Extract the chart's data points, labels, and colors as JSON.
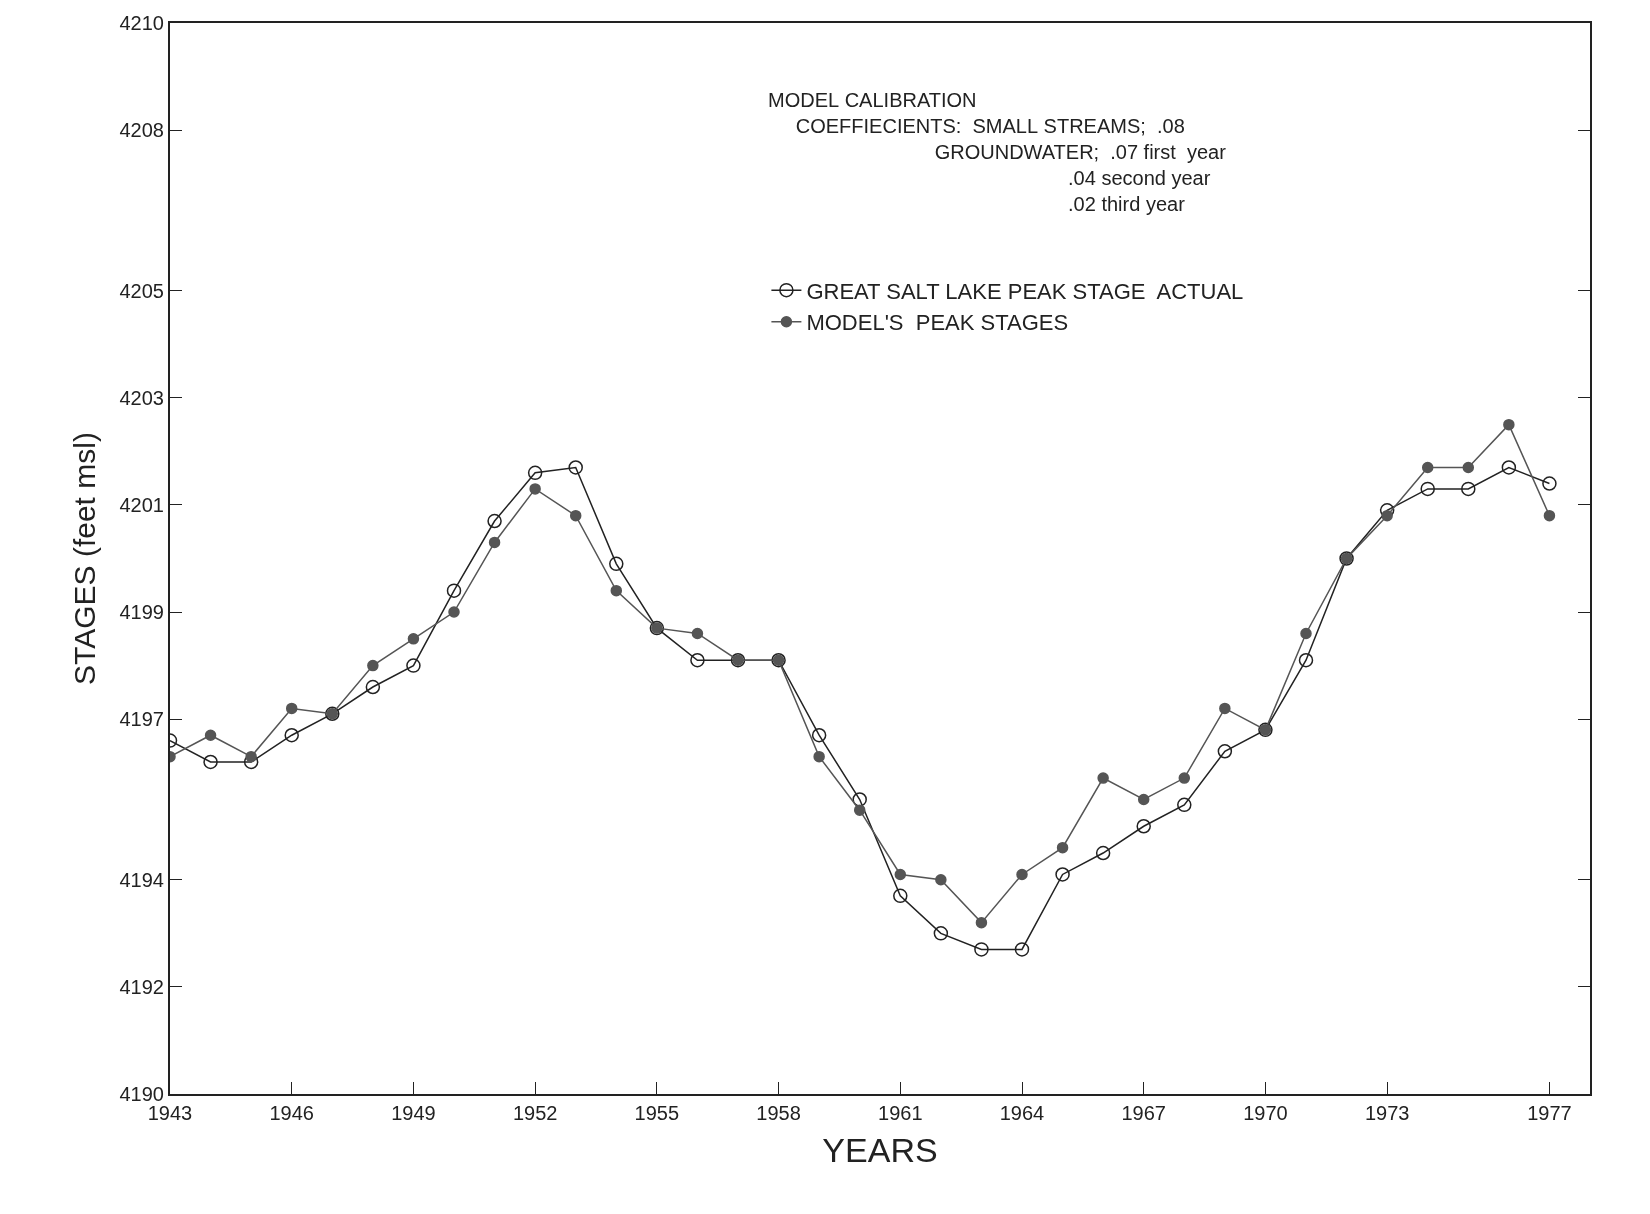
{
  "chart_data": {
    "type": "line",
    "xlabel": "YEARS",
    "ylabel": "STAGES (feet msl)",
    "x": [
      1943,
      1944,
      1945,
      1946,
      1947,
      1948,
      1949,
      1950,
      1951,
      1952,
      1953,
      1954,
      1955,
      1956,
      1957,
      1958,
      1959,
      1960,
      1961,
      1962,
      1963,
      1964,
      1965,
      1966,
      1967,
      1968,
      1969,
      1970,
      1971,
      1972,
      1973,
      1974,
      1975,
      1976,
      1977
    ],
    "series": [
      {
        "name": "GREAT SALT LAKE PEAK STAGE  ACTUAL",
        "color": "#222222",
        "marker": "circle",
        "values": [
          4196.6,
          4196.2,
          4196.2,
          4196.7,
          4197.1,
          4197.6,
          4198.0,
          4199.4,
          4200.7,
          4201.6,
          4201.7,
          4199.9,
          4198.7,
          4198.1,
          4198.1,
          4198.1,
          4196.7,
          4195.5,
          4193.7,
          4193.0,
          4192.7,
          4192.7,
          4194.1,
          4194.5,
          4195.0,
          4195.4,
          4196.4,
          4196.8,
          4198.1,
          4200.0,
          4200.9,
          4201.3,
          4201.3,
          4201.7,
          4201.4
        ]
      },
      {
        "name": "MODEL'S  PEAK STAGES",
        "color": "#555555",
        "marker": "circle",
        "values": [
          4196.3,
          4196.7,
          4196.3,
          4197.2,
          4197.1,
          4198.0,
          4198.5,
          4199.0,
          4200.3,
          4201.3,
          4200.8,
          4199.4,
          4198.7,
          4198.6,
          4198.1,
          4198.1,
          4196.3,
          4195.3,
          4194.1,
          4194.0,
          4193.2,
          4194.1,
          4194.6,
          4195.9,
          4195.5,
          4195.9,
          4197.2,
          4196.8,
          4198.6,
          4200.0,
          4200.8,
          4201.7,
          4201.7,
          4202.5,
          4200.8
        ]
      }
    ],
    "xlim": [
      1943,
      1978
    ],
    "xticks": [
      1943,
      1946,
      1949,
      1952,
      1955,
      1958,
      1961,
      1964,
      1967,
      1970,
      1973,
      1977
    ],
    "ylim": [
      4190,
      4210
    ],
    "yticks": [
      4190,
      4192,
      4194,
      4197,
      4199,
      4201,
      4203,
      4205,
      4208,
      4210
    ],
    "annotations": [
      "MODEL CALIBRATION\n     COEFFIECIENTS:  SMALL STREAMS;  .08\n                              GROUNDWATER;  .07 first  year\n                                                      .04 second year\n                                                      .02 third year"
    ],
    "legend": "top",
    "line_style": "solid"
  }
}
